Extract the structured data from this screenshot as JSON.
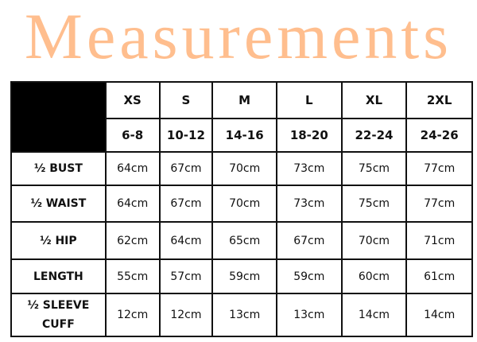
{
  "title": "Measurements",
  "table": {
    "sizes": [
      "XS",
      "S",
      "M",
      "L",
      "XL",
      "2XL"
    ],
    "size_ranges": [
      "6-8",
      "10-12",
      "14-16",
      "18-20",
      "22-24",
      "24-26"
    ],
    "rows": [
      {
        "label": "½ BUST",
        "values": [
          "64cm",
          "67cm",
          "70cm",
          "73cm",
          "75cm",
          "77cm"
        ]
      },
      {
        "label": "½ WAIST",
        "values": [
          "64cm",
          "67cm",
          "70cm",
          "73cm",
          "75cm",
          "77cm"
        ]
      },
      {
        "label": "½ HIP",
        "values": [
          "62cm",
          "64cm",
          "65cm",
          "67cm",
          "70cm",
          "71cm"
        ]
      },
      {
        "label": "LENGTH",
        "values": [
          "55cm",
          "57cm",
          "59cm",
          "59cm",
          "60cm",
          "61cm"
        ]
      },
      {
        "label": "½ SLEEVE CUFF",
        "values": [
          "12cm",
          "12cm",
          "13cm",
          "13cm",
          "14cm",
          "14cm"
        ]
      }
    ]
  },
  "colors": {
    "title": "#ffbe8e",
    "corner": "#000000"
  }
}
